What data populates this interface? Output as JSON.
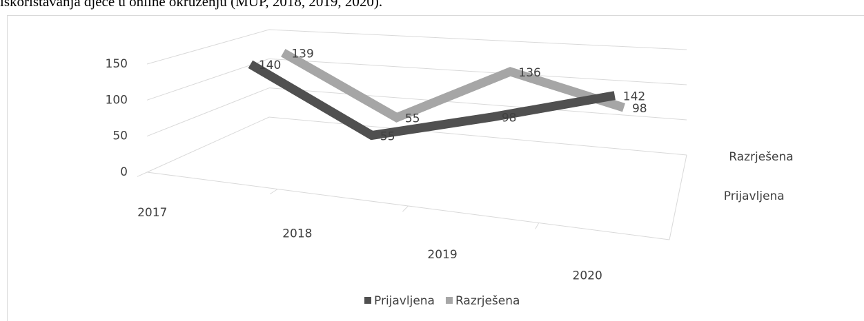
{
  "caption": "iskorištavanja djece u online okruženju (MUP, 2018, 2019, 2020).",
  "chart_data": {
    "type": "line3d",
    "categories": [
      "2017",
      "2018",
      "2019",
      "2020"
    ],
    "series": [
      {
        "name": "Prijavljena",
        "color": "#505050",
        "values": [
          140,
          55,
          98,
          142
        ]
      },
      {
        "name": "Razrješena",
        "color": "#a6a6a6",
        "values": [
          139,
          55,
          136,
          98
        ]
      }
    ],
    "ylim": [
      0,
      150
    ],
    "yticks": [
      0,
      50,
      100,
      150
    ],
    "grid": true,
    "legend": "bottom"
  }
}
